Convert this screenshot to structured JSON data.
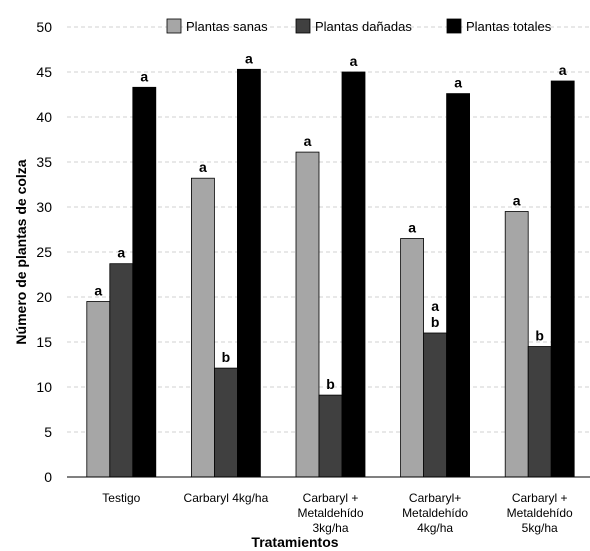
{
  "chart_data": {
    "type": "bar",
    "title": "",
    "xlabel": "Tratamientos",
    "ylabel": "Número de plantas de colza",
    "ylim": [
      0,
      50
    ],
    "yticks": [
      0,
      5,
      10,
      15,
      20,
      25,
      30,
      35,
      40,
      45,
      50
    ],
    "grid": true,
    "legend_position": "top",
    "categories": [
      [
        "Testigo"
      ],
      [
        "Carbaryl 4kg/ha"
      ],
      [
        "Carbaryl +",
        "Metaldehído",
        "3kg/ha"
      ],
      [
        "Carbaryl+",
        "Metaldehído",
        "4kg/ha"
      ],
      [
        "Carbaryl +",
        "Metaldehído",
        "5kg/ha"
      ]
    ],
    "series": [
      {
        "name": "Plantas sanas",
        "color": "#a6a6a6",
        "values": [
          19.5,
          33.2,
          36.1,
          26.5,
          29.5
        ],
        "labels": [
          "a",
          "a",
          "a",
          "a",
          "a"
        ]
      },
      {
        "name": "Plantas dañadas",
        "color": "#404040",
        "values": [
          23.7,
          12.1,
          9.1,
          16.0,
          14.5
        ],
        "labels": [
          "a",
          "b",
          "b",
          "a\nb",
          "b"
        ]
      },
      {
        "name": "Plantas totales",
        "color": "#000000",
        "values": [
          43.3,
          45.3,
          45.0,
          42.6,
          44.0
        ],
        "labels": [
          "a",
          "a",
          "a",
          "a",
          "a"
        ]
      }
    ]
  }
}
